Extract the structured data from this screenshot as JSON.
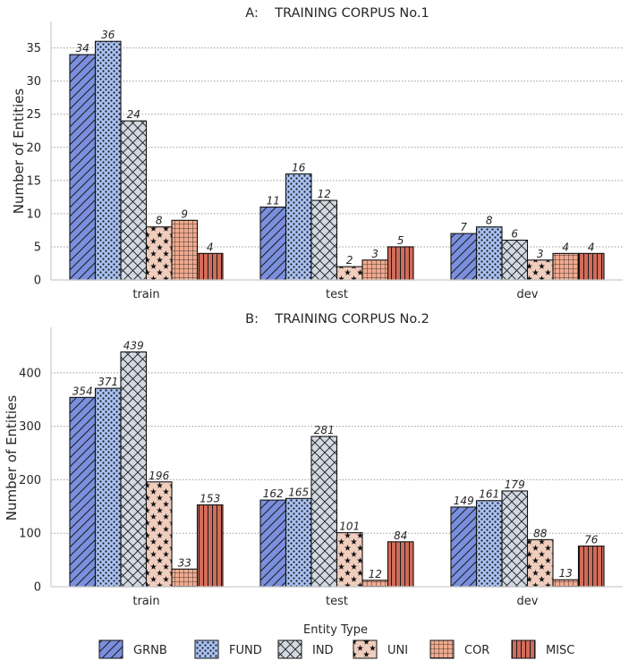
{
  "chart_data": [
    {
      "type": "bar",
      "title": "A:    TRAINING CORPUS No.1",
      "xlabel": "",
      "ylabel": "Number of Entities",
      "ylim": [
        0,
        39
      ],
      "yticks": [
        0,
        5,
        10,
        15,
        20,
        25,
        30,
        35
      ],
      "grid": "horizontal dotted",
      "categories": [
        "train",
        "test",
        "dev"
      ],
      "series": [
        {
          "name": "GRNB",
          "values": [
            34,
            11,
            7
          ]
        },
        {
          "name": "FUND",
          "values": [
            36,
            16,
            8
          ]
        },
        {
          "name": "IND",
          "values": [
            24,
            12,
            6
          ]
        },
        {
          "name": "UNI",
          "values": [
            8,
            2,
            3
          ]
        },
        {
          "name": "COR",
          "values": [
            9,
            3,
            4
          ]
        },
        {
          "name": "MISC",
          "values": [
            4,
            5,
            4
          ]
        }
      ]
    },
    {
      "type": "bar",
      "title": "B:    TRAINING CORPUS No.2",
      "xlabel": "",
      "ylabel": "Number of Entities",
      "ylim": [
        0,
        485
      ],
      "yticks": [
        0,
        100,
        200,
        300,
        400
      ],
      "grid": "horizontal dotted",
      "categories": [
        "train",
        "test",
        "dev"
      ],
      "series": [
        {
          "name": "GRNB",
          "values": [
            354,
            162,
            149
          ]
        },
        {
          "name": "FUND",
          "values": [
            371,
            165,
            161
          ]
        },
        {
          "name": "IND",
          "values": [
            439,
            281,
            179
          ]
        },
        {
          "name": "UNI",
          "values": [
            196,
            101,
            88
          ]
        },
        {
          "name": "COR",
          "values": [
            33,
            12,
            13
          ]
        },
        {
          "name": "MISC",
          "values": [
            153,
            84,
            76
          ]
        }
      ]
    }
  ],
  "legend": {
    "title": "Entity Type",
    "placement": "bottom-center",
    "items": [
      "GRNB",
      "FUND",
      "IND",
      "UNI",
      "COR",
      "MISC"
    ]
  },
  "styles": {
    "colors": {
      "GRNB": "#7b8fdf",
      "FUND": "#a9c2f4",
      "IND": "#d2d9e2",
      "UNI": "#f0cdbd",
      "COR": "#f0aa8f",
      "MISC": "#d06c5a"
    },
    "patterns": {
      "GRNB": "diagonal-hatch",
      "FUND": "dots",
      "IND": "crosshatch",
      "UNI": "stars",
      "COR": "grid",
      "MISC": "vertical-lines"
    }
  }
}
